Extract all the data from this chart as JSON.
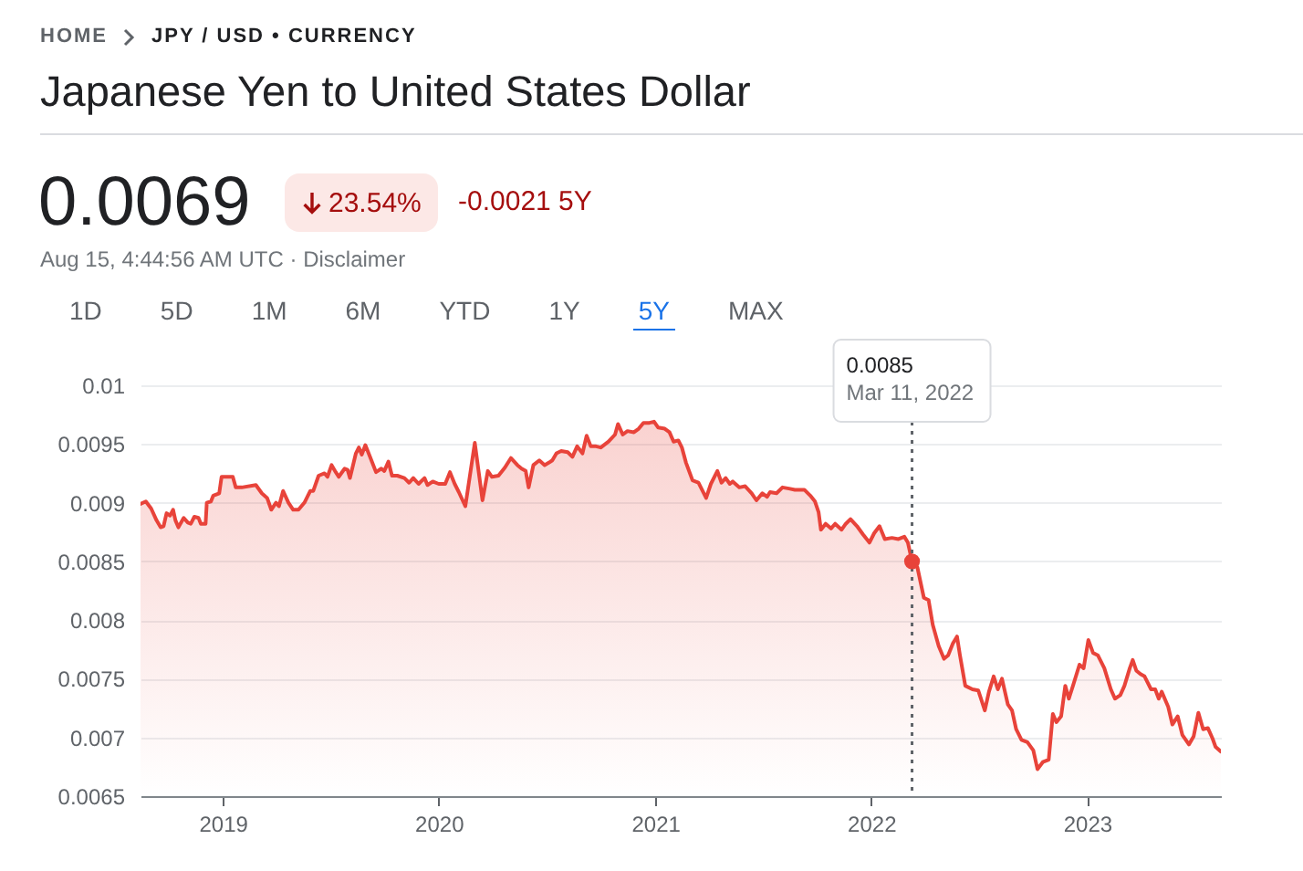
{
  "chart_data": {
    "type": "area",
    "title": "Japanese Yen to United States Dollar",
    "annotations": [
      "HOME",
      "JPY / USD • CURRENCY",
      "0.0069",
      "23.54%",
      "-0.0021 5Y",
      "Aug 15, 4:44:56 AM UTC · Disclaimer",
      "1D",
      "5D",
      "1M",
      "6M",
      "YTD",
      "1Y",
      "5Y",
      "MAX",
      "0.0085",
      {
        "text": "Mar 11, 2022",
        "x": "2022-03-11"
      }
    ],
    "x": [
      "2018-08-15",
      "2018-08-24",
      "2018-09-02",
      "2018-09-11",
      "2018-09-18",
      "2018-09-23",
      "2018-09-28",
      "2018-10-04",
      "2018-10-09",
      "2018-10-13",
      "2018-10-18",
      "2018-10-27",
      "2018-11-03",
      "2018-11-08",
      "2018-11-14",
      "2018-11-21",
      "2018-11-25",
      "2018-12-03",
      "2018-12-05",
      "2018-12-12",
      "2018-12-16",
      "2018-12-26",
      "2018-12-30",
      "2019-01-18",
      "2019-01-23",
      "2019-02-02",
      "2019-02-26",
      "2019-03-08",
      "2019-03-17",
      "2019-03-24",
      "2019-04-01",
      "2019-04-06",
      "2019-04-13",
      "2019-04-22",
      "2019-04-30",
      "2019-05-09",
      "2019-05-19",
      "2019-05-29",
      "2019-06-03",
      "2019-06-12",
      "2019-06-22",
      "2019-06-27",
      "2019-07-04",
      "2019-07-11",
      "2019-07-16",
      "2019-07-26",
      "2019-07-31",
      "2019-08-04",
      "2019-08-14",
      "2019-08-19",
      "2019-08-24",
      "2019-08-30",
      "2019-09-07",
      "2019-09-17",
      "2019-09-26",
      "2019-10-01",
      "2019-10-08",
      "2019-10-14",
      "2019-10-23",
      "2019-11-04",
      "2019-11-12",
      "2019-11-19",
      "2019-11-28",
      "2019-12-08",
      "2019-12-13",
      "2019-12-22",
      "2020-01-01",
      "2020-01-12",
      "2020-01-20",
      "2020-01-28",
      "2020-02-04",
      "2020-02-15",
      "2020-03-02",
      "2020-03-15",
      "2020-03-24",
      "2020-03-31",
      "2020-04-11",
      "2020-04-22",
      "2020-05-02",
      "2020-05-13",
      "2020-05-20",
      "2020-05-27",
      "2020-06-01",
      "2020-06-09",
      "2020-06-19",
      "2020-06-28",
      "2020-07-05",
      "2020-07-11",
      "2020-07-18",
      "2020-07-26",
      "2020-08-06",
      "2020-08-14",
      "2020-08-22",
      "2020-08-31",
      "2020-09-07",
      "2020-09-14",
      "2020-09-23",
      "2020-10-01",
      "2020-10-14",
      "2020-10-25",
      "2020-10-30",
      "2020-11-07",
      "2020-11-15",
      "2020-11-26",
      "2020-12-04",
      "2020-12-12",
      "2020-12-22",
      "2020-12-30",
      "2021-01-06",
      "2021-01-17",
      "2021-01-25",
      "2021-02-01",
      "2021-02-09",
      "2021-02-15",
      "2021-02-22",
      "2021-03-05",
      "2021-03-15",
      "2021-03-28",
      "2021-04-05",
      "2021-04-16",
      "2021-04-23",
      "2021-04-30",
      "2021-05-07",
      "2021-05-12",
      "2021-05-23",
      "2021-06-02",
      "2021-06-13",
      "2021-06-21",
      "2021-07-01",
      "2021-07-09",
      "2021-07-14",
      "2021-07-25",
      "2021-08-04",
      "2021-08-15",
      "2021-08-25",
      "2021-09-10",
      "2021-09-20",
      "2021-09-28",
      "2021-10-04",
      "2021-10-08",
      "2021-10-16",
      "2021-10-25",
      "2021-11-01",
      "2021-11-12",
      "2021-11-19",
      "2021-11-27",
      "2021-12-08",
      "2021-12-18",
      "2021-12-29",
      "2022-01-06",
      "2022-01-15",
      "2022-01-24",
      "2022-02-05",
      "2022-02-16",
      "2022-02-26",
      "2022-03-04",
      "2022-03-11",
      "2022-03-20",
      "2022-03-31",
      "2022-04-08",
      "2022-04-15",
      "2022-04-25",
      "2022-05-04",
      "2022-05-11",
      "2022-05-19",
      "2022-05-26",
      "2022-05-31",
      "2022-06-09",
      "2022-06-21",
      "2022-07-01",
      "2022-07-12",
      "2022-07-19",
      "2022-07-27",
      "2022-08-03",
      "2022-08-10",
      "2022-08-20",
      "2022-08-27",
      "2022-09-03",
      "2022-09-12",
      "2022-09-22",
      "2022-10-02",
      "2022-10-09",
      "2022-10-18",
      "2022-10-28",
      "2022-11-04",
      "2022-11-10",
      "2022-11-18",
      "2022-11-25",
      "2022-12-01",
      "2022-12-08",
      "2022-12-19",
      "2022-12-26",
      "2023-01-03",
      "2023-01-11",
      "2023-01-19",
      "2023-01-30",
      "2023-02-10",
      "2023-02-17",
      "2023-02-26",
      "2023-03-05",
      "2023-03-14",
      "2023-03-19",
      "2023-03-25",
      "2023-04-01",
      "2023-04-08",
      "2023-04-19",
      "2023-04-26",
      "2023-05-02",
      "2023-05-07",
      "2023-05-18",
      "2023-05-25",
      "2023-06-03",
      "2023-06-11",
      "2023-06-22",
      "2023-06-30",
      "2023-07-08",
      "2023-07-16",
      "2023-07-24",
      "2023-08-01",
      "2023-08-06",
      "2023-08-15"
    ],
    "series": [
      {
        "color": "#e8433a",
        "values": [
          0.00899,
          0.00901,
          0.00895,
          0.00885,
          0.00879,
          0.0088,
          0.00891,
          0.00889,
          0.00894,
          0.00885,
          0.00879,
          0.00887,
          0.00883,
          0.00882,
          0.00888,
          0.00887,
          0.00882,
          0.00882,
          0.009,
          0.00901,
          0.00906,
          0.00908,
          0.00922,
          0.00922,
          0.00913,
          0.00913,
          0.00915,
          0.00908,
          0.00904,
          0.00894,
          0.009,
          0.00897,
          0.0091,
          0.009,
          0.00894,
          0.00894,
          0.009,
          0.0091,
          0.0091,
          0.00923,
          0.00925,
          0.00922,
          0.00932,
          0.00926,
          0.00922,
          0.00929,
          0.00928,
          0.00921,
          0.00942,
          0.00947,
          0.00941,
          0.00949,
          0.00939,
          0.00926,
          0.00929,
          0.00927,
          0.00935,
          0.00923,
          0.00923,
          0.00921,
          0.00917,
          0.00921,
          0.00916,
          0.00921,
          0.00915,
          0.00918,
          0.00916,
          0.00916,
          0.00926,
          0.00916,
          0.00909,
          0.00897,
          0.00951,
          0.00902,
          0.00927,
          0.00922,
          0.00923,
          0.0093,
          0.00938,
          0.00932,
          0.00929,
          0.00927,
          0.00913,
          0.00932,
          0.00936,
          0.00932,
          0.00934,
          0.00936,
          0.00942,
          0.00944,
          0.00943,
          0.00939,
          0.00948,
          0.00942,
          0.00957,
          0.00948,
          0.00948,
          0.00947,
          0.00952,
          0.00958,
          0.00967,
          0.00958,
          0.00961,
          0.0096,
          0.00963,
          0.00968,
          0.00968,
          0.00969,
          0.00964,
          0.00963,
          0.0096,
          0.00952,
          0.00953,
          0.00947,
          0.00934,
          0.00919,
          0.00917,
          0.00904,
          0.00916,
          0.00927,
          0.00917,
          0.00921,
          0.00916,
          0.00918,
          0.00913,
          0.00914,
          0.00908,
          0.00902,
          0.00908,
          0.00905,
          0.00909,
          0.00908,
          0.00913,
          0.00912,
          0.00911,
          0.00911,
          0.00906,
          0.00901,
          0.00892,
          0.00877,
          0.00882,
          0.00878,
          0.00882,
          0.00877,
          0.00882,
          0.00886,
          0.0088,
          0.00873,
          0.00866,
          0.00874,
          0.0088,
          0.00869,
          0.0087,
          0.00869,
          0.00871,
          0.00866,
          0.0085,
          0.00845,
          0.00819,
          0.00817,
          0.00796,
          0.00778,
          0.00767,
          0.0077,
          0.0078,
          0.00786,
          0.0077,
          0.00744,
          0.00741,
          0.0074,
          0.00723,
          0.00739,
          0.00752,
          0.00741,
          0.0075,
          0.00728,
          0.00723,
          0.00707,
          0.00698,
          0.00696,
          0.00689,
          0.00673,
          0.00679,
          0.00681,
          0.0072,
          0.00713,
          0.00718,
          0.00744,
          0.00733,
          0.00744,
          0.00762,
          0.00759,
          0.00783,
          0.00772,
          0.0077,
          0.00759,
          0.00741,
          0.00733,
          0.00736,
          0.00744,
          0.00759,
          0.00766,
          0.00757,
          0.00754,
          0.00752,
          0.00741,
          0.00741,
          0.00733,
          0.00739,
          0.00726,
          0.00711,
          0.00718,
          0.00702,
          0.00694,
          0.00701,
          0.00721,
          0.00707,
          0.00708,
          0.00699,
          0.00692,
          0.00688
        ]
      },
      {
        "type": "scatter",
        "color": "#e8433a",
        "x": [
          "2022-03-11"
        ],
        "values": [
          0.0085
        ]
      }
    ],
    "xlim": [
      "2018-08-15",
      "2023-08-15"
    ],
    "xticks": [
      "2019",
      "2020",
      "2021",
      "2022",
      "2023"
    ],
    "ylim": [
      0.0065,
      0.01
    ],
    "yticks": [
      0.0065,
      0.007,
      0.0075,
      0.008,
      0.0085,
      0.009,
      0.0095,
      0.01
    ],
    "grid": "y",
    "ref_lines": [
      {
        "axis": "x",
        "value": "2022-03-11",
        "line_style": "dotted",
        "color": "#5f6368"
      }
    ]
  }
}
